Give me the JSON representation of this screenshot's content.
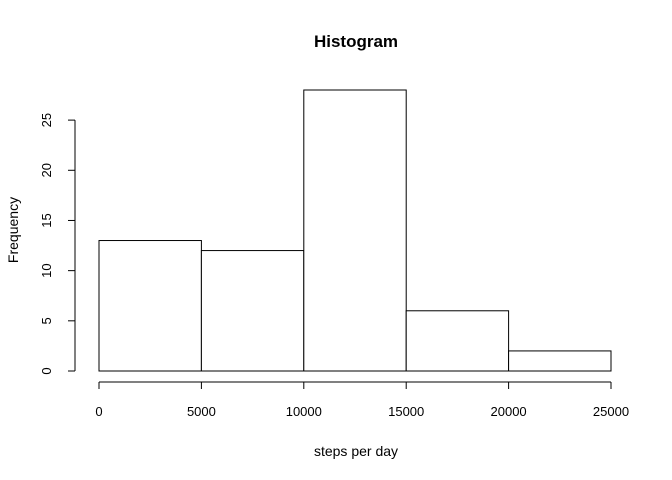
{
  "chart_data": {
    "type": "bar",
    "title": "Histogram",
    "xlabel": "steps per day",
    "ylabel": "Frequency",
    "bins": [
      {
        "from": 0,
        "to": 5000,
        "count": 13
      },
      {
        "from": 5000,
        "to": 10000,
        "count": 12
      },
      {
        "from": 10000,
        "to": 15000,
        "count": 28
      },
      {
        "from": 15000,
        "to": 20000,
        "count": 6
      },
      {
        "from": 20000,
        "to": 25000,
        "count": 2
      }
    ],
    "xlim": [
      0,
      25000
    ],
    "ylim": [
      0,
      28
    ],
    "x_ticks": [
      0,
      5000,
      10000,
      15000,
      20000,
      25000
    ],
    "x_tick_labels": [
      "0",
      "5000",
      "10000",
      "15000",
      "20000",
      "25000"
    ],
    "y_ticks": [
      0,
      5,
      10,
      15,
      20,
      25
    ],
    "y_tick_labels": [
      "0",
      "5",
      "10",
      "15",
      "20",
      "25"
    ],
    "grid": false,
    "bar_fill": "#ffffff",
    "bar_stroke": "#000000"
  }
}
